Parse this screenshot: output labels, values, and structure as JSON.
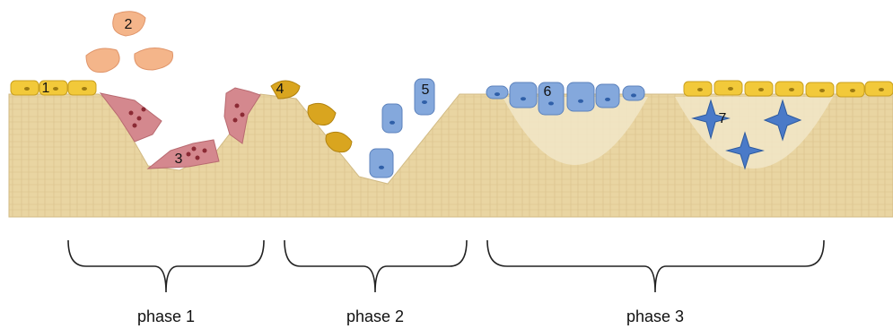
{
  "labels": [
    "1",
    "2",
    "3",
    "4",
    "5",
    "6",
    "7"
  ],
  "phases": [
    "phase 1",
    "phase 2",
    "phase 3"
  ]
}
